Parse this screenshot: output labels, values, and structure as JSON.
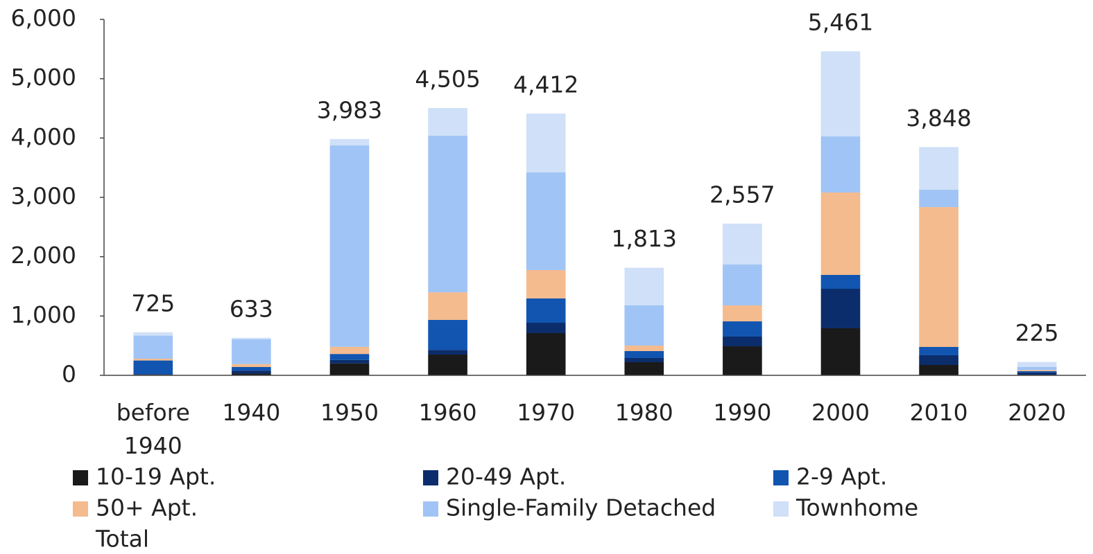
{
  "chart_data": {
    "type": "stacked_bar",
    "categories": [
      "before 1940",
      "1940",
      "1950",
      "1960",
      "1970",
      "1980",
      "1990",
      "2000",
      "2010",
      "2020"
    ],
    "series": [
      {
        "name": "10-19 Apt.",
        "color": "#1a1a1a",
        "values": [
          10,
          30,
          200,
          350,
          712,
          222,
          490,
          794,
          175,
          10
        ]
      },
      {
        "name": "20-49 Apt.",
        "color": "#0b2d6b",
        "values": [
          10,
          50,
          60,
          80,
          175,
          70,
          164,
          665,
          164,
          40
        ]
      },
      {
        "name": "2-9 Apt.",
        "color": "#1155b0",
        "values": [
          230,
          60,
          100,
          504,
          409,
          117,
          256,
          234,
          140,
          20
        ]
      },
      {
        "name": "50+ Apt.",
        "color": "#f4bb8e",
        "values": [
          30,
          50,
          120,
          466,
          478,
          93,
          269,
          1389,
          2357,
          20
        ]
      },
      {
        "name": "Single-Family Detached",
        "color": "#a0c4f5",
        "values": [
          390,
          420,
          3395,
          2640,
          1646,
          677,
          689,
          945,
          292,
          50
        ]
      },
      {
        "name": "Townhome",
        "color": "#cfe0f8",
        "values": [
          55,
          23,
          108,
          465,
          992,
          634,
          689,
          1434,
          720,
          85
        ]
      },
      {
        "name": "Total",
        "values": [
          725,
          633,
          3983,
          4505,
          4412,
          1813,
          2557,
          5461,
          3848,
          225
        ],
        "value_labels": [
          "725",
          "633",
          "3,983",
          "4,505",
          "4,412",
          "1,813",
          "2,557",
          "5,461",
          "3,848",
          "225"
        ]
      }
    ],
    "ylim": [
      0,
      6000
    ],
    "yticks": [
      0,
      {
        "value": 1000,
        "label": "1,000"
      },
      {
        "value": 2000,
        "label": "2,000"
      },
      {
        "value": 3000,
        "label": "3,000"
      },
      {
        "value": 4000,
        "label": "4,000"
      },
      {
        "value": 5000,
        "label": "5,000"
      },
      {
        "value": 6000,
        "label": "6,000"
      }
    ]
  }
}
